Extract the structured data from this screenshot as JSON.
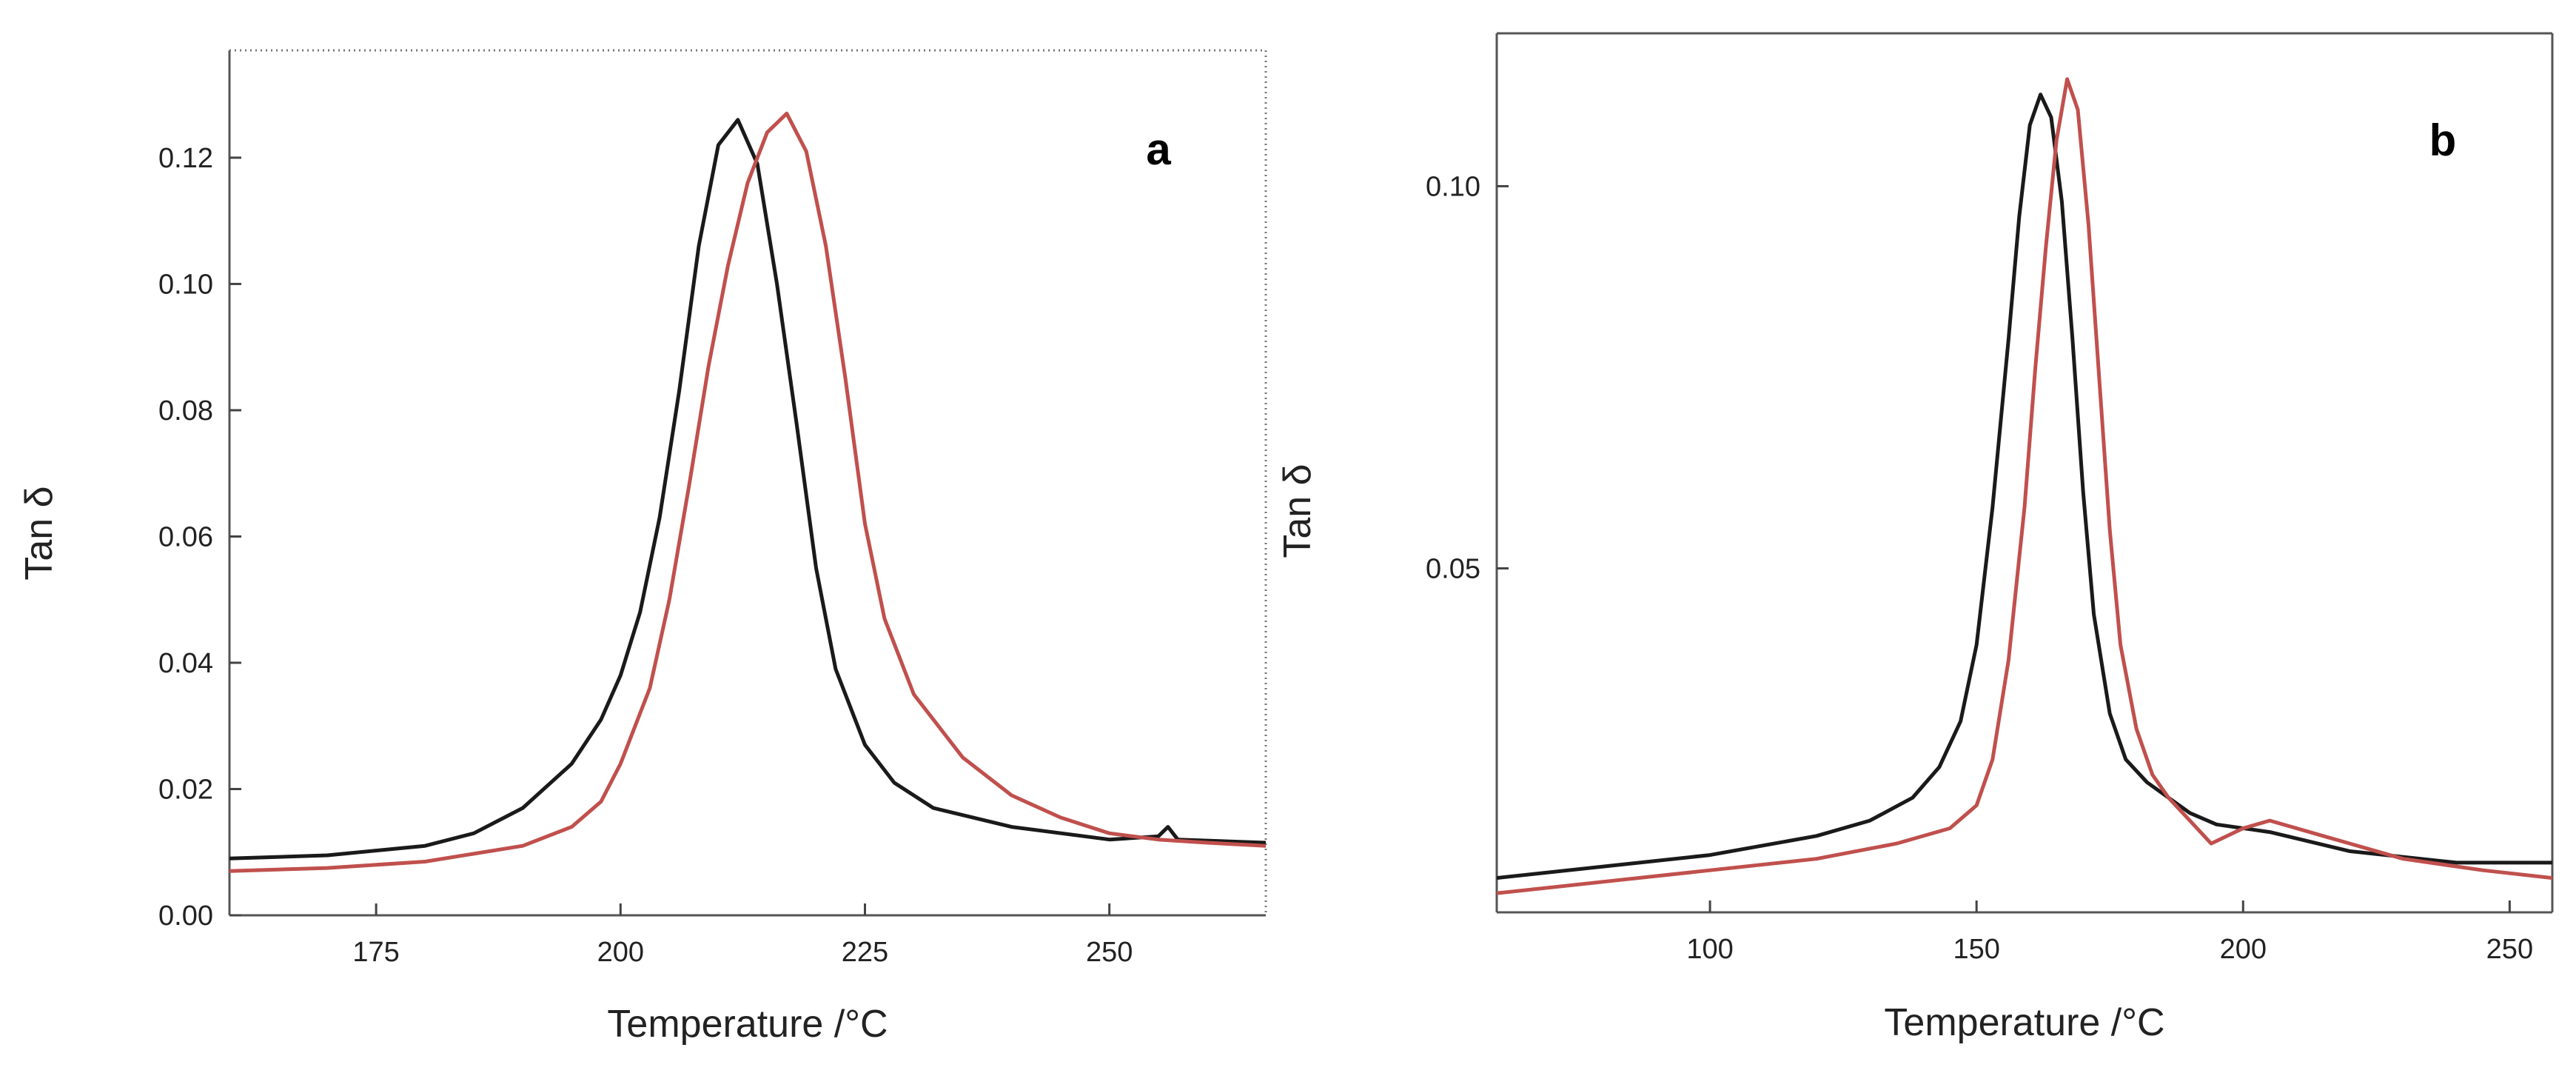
{
  "chart_data": [
    {
      "type": "line",
      "panel_label": "a",
      "xlabel": "Temperature /°C",
      "ylabel": "Tan δ",
      "xlim": [
        160,
        266
      ],
      "ylim": [
        0.0,
        0.137
      ],
      "xticks": [
        175,
        200,
        225,
        250
      ],
      "xtick_labels": [
        "175",
        "200",
        "225",
        "250"
      ],
      "yticks": [
        0.0,
        0.02,
        0.04,
        0.06,
        0.08,
        0.1,
        0.12
      ],
      "ytick_labels": [
        "0.00",
        "0.02",
        "0.04",
        "0.06",
        "0.08",
        "0.10",
        "0.12"
      ],
      "grid": false,
      "legend": "none",
      "series": [
        {
          "color": "#1a1a1a",
          "x": [
            160,
            170,
            180,
            185,
            190,
            195,
            198,
            200,
            202,
            204,
            206,
            208,
            210,
            212,
            214,
            216,
            218,
            220,
            222,
            225,
            228,
            232,
            240,
            250,
            255,
            256,
            257,
            266
          ],
          "y": [
            0.009,
            0.0095,
            0.011,
            0.013,
            0.017,
            0.024,
            0.031,
            0.038,
            0.048,
            0.063,
            0.083,
            0.106,
            0.122,
            0.126,
            0.119,
            0.1,
            0.078,
            0.055,
            0.039,
            0.027,
            0.021,
            0.017,
            0.014,
            0.012,
            0.0125,
            0.014,
            0.012,
            0.0115
          ]
        },
        {
          "color": "#c0504d",
          "x": [
            160,
            170,
            180,
            190,
            195,
            198,
            200,
            203,
            205,
            207,
            209,
            211,
            213,
            215,
            217,
            219,
            221,
            223,
            225,
            227,
            230,
            235,
            240,
            245,
            250,
            255,
            260,
            266
          ],
          "y": [
            0.007,
            0.0075,
            0.0085,
            0.011,
            0.014,
            0.018,
            0.024,
            0.036,
            0.05,
            0.068,
            0.087,
            0.103,
            0.116,
            0.124,
            0.127,
            0.121,
            0.106,
            0.085,
            0.062,
            0.047,
            0.035,
            0.025,
            0.019,
            0.0155,
            0.013,
            0.012,
            0.0115,
            0.011
          ]
        }
      ]
    },
    {
      "type": "line",
      "panel_label": "b",
      "xlabel": "Temperature /°C",
      "ylabel": "Tan δ",
      "xlim": [
        60,
        258
      ],
      "ylim": [
        0.005,
        0.12
      ],
      "xticks": [
        100,
        150,
        200,
        250
      ],
      "xtick_labels": [
        "100",
        "150",
        "200",
        "250"
      ],
      "yticks": [
        0.05,
        0.1
      ],
      "ytick_labels": [
        "0.05",
        "0.10"
      ],
      "grid": false,
      "legend": "none",
      "series": [
        {
          "color": "#1a1a1a",
          "x": [
            60,
            80,
            100,
            120,
            130,
            138,
            143,
            147,
            150,
            153,
            156,
            158,
            160,
            162,
            164,
            166,
            168,
            170,
            172,
            175,
            178,
            182,
            186,
            190,
            195,
            205,
            220,
            240,
            258
          ],
          "y": [
            0.0095,
            0.011,
            0.0125,
            0.015,
            0.017,
            0.02,
            0.024,
            0.03,
            0.04,
            0.058,
            0.08,
            0.096,
            0.108,
            0.112,
            0.109,
            0.098,
            0.08,
            0.06,
            0.044,
            0.031,
            0.025,
            0.022,
            0.02,
            0.018,
            0.0165,
            0.0155,
            0.013,
            0.0115,
            0.0115
          ]
        },
        {
          "color": "#c0504d",
          "x": [
            60,
            80,
            100,
            120,
            135,
            145,
            150,
            153,
            156,
            159,
            161,
            163,
            165,
            167,
            169,
            171,
            173,
            175,
            177,
            180,
            183,
            186,
            190,
            194,
            200,
            205,
            215,
            230,
            245,
            258
          ],
          "y": [
            0.0075,
            0.009,
            0.0105,
            0.012,
            0.014,
            0.016,
            0.019,
            0.025,
            0.038,
            0.058,
            0.076,
            0.092,
            0.106,
            0.114,
            0.11,
            0.095,
            0.075,
            0.055,
            0.04,
            0.029,
            0.023,
            0.02,
            0.017,
            0.014,
            0.016,
            0.017,
            0.015,
            0.012,
            0.0105,
            0.0095
          ]
        }
      ]
    }
  ]
}
